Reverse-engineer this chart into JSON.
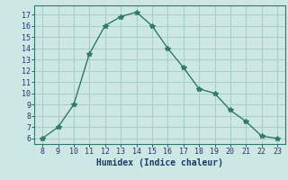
{
  "x": [
    8,
    9,
    10,
    11,
    12,
    13,
    14,
    15,
    16,
    17,
    18,
    19,
    20,
    21,
    22,
    23
  ],
  "y": [
    6,
    7,
    9,
    13.5,
    16,
    16.8,
    17.2,
    16,
    14,
    12.3,
    10.4,
    10,
    8.5,
    7.5,
    6.2,
    6
  ],
  "line_color": "#2d7a6a",
  "marker": "*",
  "bg_color": "#cde8e4",
  "grid_color": "#aacfca",
  "xlabel": "Humidex (Indice chaleur)",
  "xlim": [
    7.5,
    23.5
  ],
  "ylim": [
    5.5,
    17.8
  ],
  "xticks": [
    8,
    9,
    10,
    11,
    12,
    13,
    14,
    15,
    16,
    17,
    18,
    19,
    20,
    21,
    22,
    23
  ],
  "yticks": [
    6,
    7,
    8,
    9,
    10,
    11,
    12,
    13,
    14,
    15,
    16,
    17
  ],
  "font_color": "#1a3a6a",
  "tick_fontsize": 6.0,
  "xlabel_fontsize": 7.0
}
